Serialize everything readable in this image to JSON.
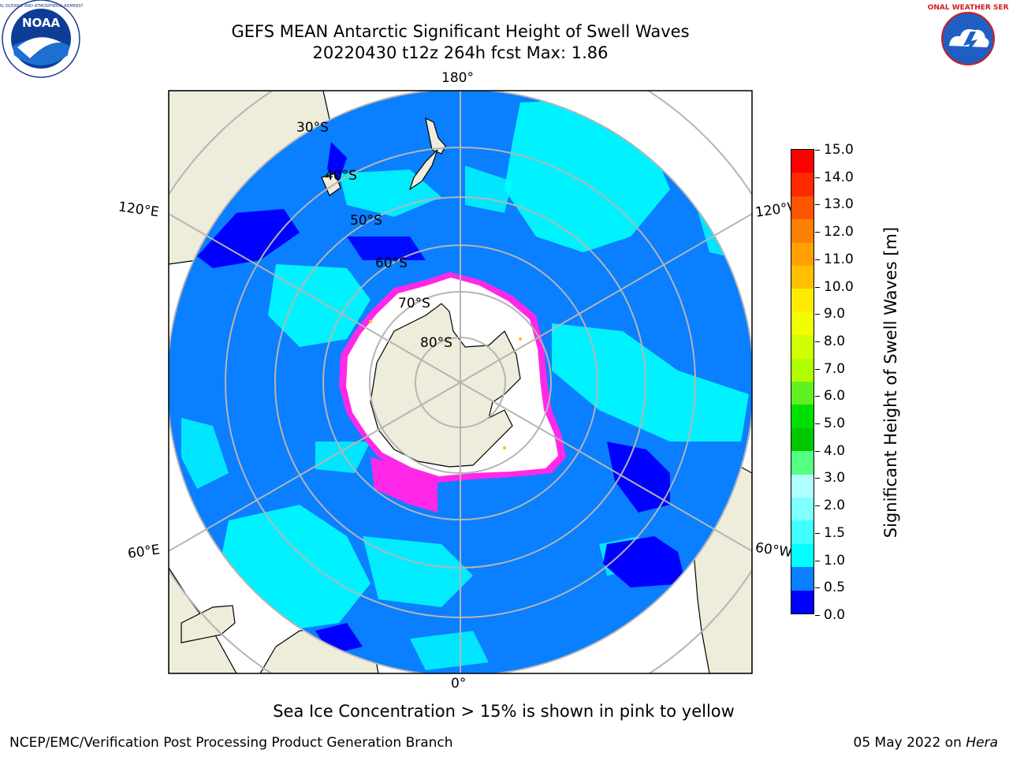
{
  "title": {
    "line1": "GEFS MEAN Antarctic Significant Height of Swell Waves",
    "line2": "20220430 t12z 264h fcst   Max: 1.86"
  },
  "logos": {
    "left": {
      "icon": "noaa-logo",
      "text": "NOAA"
    },
    "right": {
      "icon": "national-weather-service-logo",
      "text": "NATIONAL WEATHER SERVICE"
    }
  },
  "map": {
    "projection": "south-polar-stereographic",
    "longitude_labels": {
      "top": "180°",
      "bottom": "0°",
      "upper_left": "120°E",
      "upper_right": "120°W",
      "lower_left": "60°E",
      "lower_right": "60°W"
    },
    "latitude_labels": [
      "30°S",
      "40°S",
      "50°S",
      "60°S",
      "70°S",
      "80°S"
    ],
    "colors": {
      "ocean_main": "#0a7fff",
      "ocean_low": "#0000ff",
      "ocean_high": "#00ffff",
      "land": "#eeecdb",
      "sea_ice_pink": "#ff28e8",
      "sea_ice_white": "#ffffff",
      "gridline": "#b5b5b5"
    }
  },
  "colorbar": {
    "title": "Significant Height of Swell Waves [m]",
    "tick_labels": [
      "15.0",
      "14.0",
      "13.0",
      "12.0",
      "11.0",
      "10.0",
      "9.0",
      "8.0",
      "7.0",
      "6.0",
      "5.0",
      "4.0",
      "3.0",
      "2.0",
      "1.5",
      "1.0",
      "0.5",
      "0.0"
    ],
    "colors_top_to_bottom": [
      "#ff0000",
      "#ff2a00",
      "#ff5500",
      "#ff8000",
      "#ffa000",
      "#ffc000",
      "#ffeb00",
      "#f0ff00",
      "#d0ff00",
      "#b0ff00",
      "#60f020",
      "#00e000",
      "#00c800",
      "#55ff80",
      "#b0ffff",
      "#7fffff",
      "#40ffff",
      "#00ffff",
      "#0a7fff",
      "#0000ff"
    ]
  },
  "note": "Sea Ice Concentration > 15% is shown in pink to yellow",
  "footer": {
    "left": "NCEP/EMC/Verification Post Processing Product Generation Branch",
    "date": "05 May 2022 on",
    "machine": "Hera"
  }
}
